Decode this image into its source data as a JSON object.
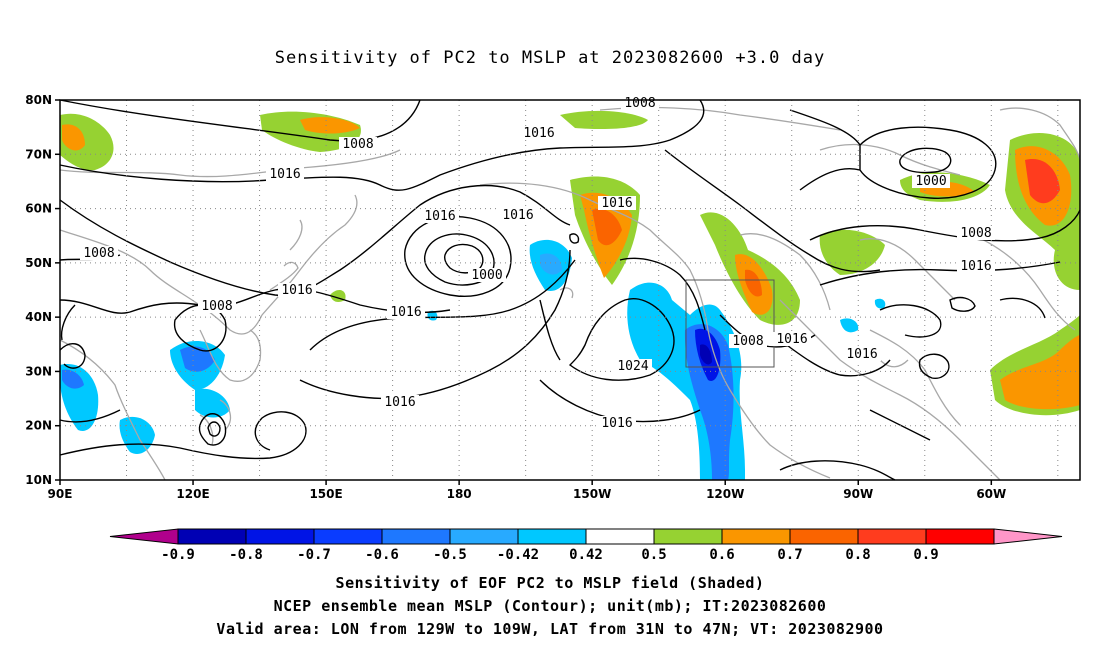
{
  "title": "Sensitivity of PC2 to MSLP at 2023082600 +3.0 day",
  "map": {
    "lat_labels": [
      "80N",
      "70N",
      "60N",
      "50N",
      "40N",
      "30N",
      "20N",
      "10N"
    ],
    "lon_labels": [
      "90E",
      "120E",
      "150E",
      "180",
      "150W",
      "120W",
      "90W",
      "60W"
    ],
    "extent": {
      "lon_min_deg_east": 90,
      "lon_max_deg_east": 320,
      "lat_min": 10,
      "lat_max": 80
    },
    "gridlines": "dotted",
    "contour_labels": [
      "1008",
      "1016",
      "1008",
      "1016",
      "1016",
      "1008",
      "1016",
      "1016",
      "1000",
      "1016",
      "1008",
      "1016",
      "1024",
      "1016",
      "1016",
      "1008",
      "1016",
      "1008",
      "1000",
      "1008",
      "1016",
      "1016",
      "1008",
      "1016"
    ],
    "valid_box": {
      "lon_w": "129W",
      "lon_e": "109W",
      "lat_s": "31N",
      "lat_n": "47N"
    }
  },
  "colorbar": {
    "labels": [
      "-0.9",
      "-0.8",
      "-0.7",
      "-0.6",
      "-0.5",
      "-0.42",
      "0.42",
      "0.5",
      "0.6",
      "0.7",
      "0.8",
      "0.9"
    ],
    "colors": [
      "#b0008c",
      "#0000b4",
      "#0014e6",
      "#0a3cff",
      "#1e78ff",
      "#28aaff",
      "#00c8ff",
      "#ffffff",
      "#96d232",
      "#fa9600",
      "#fa6400",
      "#ff3c1e",
      "#ff0000",
      "#ff96c8"
    ]
  },
  "footer": {
    "line1": "Sensitivity of EOF PC2 to MSLP field (Shaded)",
    "line2": "NCEP ensemble mean MSLP (Contour); unit(mb); IT:2023082600",
    "line3": "Valid area: LON from 129W to 109W, LAT from 31N to 47N; VT: 2023082900"
  }
}
